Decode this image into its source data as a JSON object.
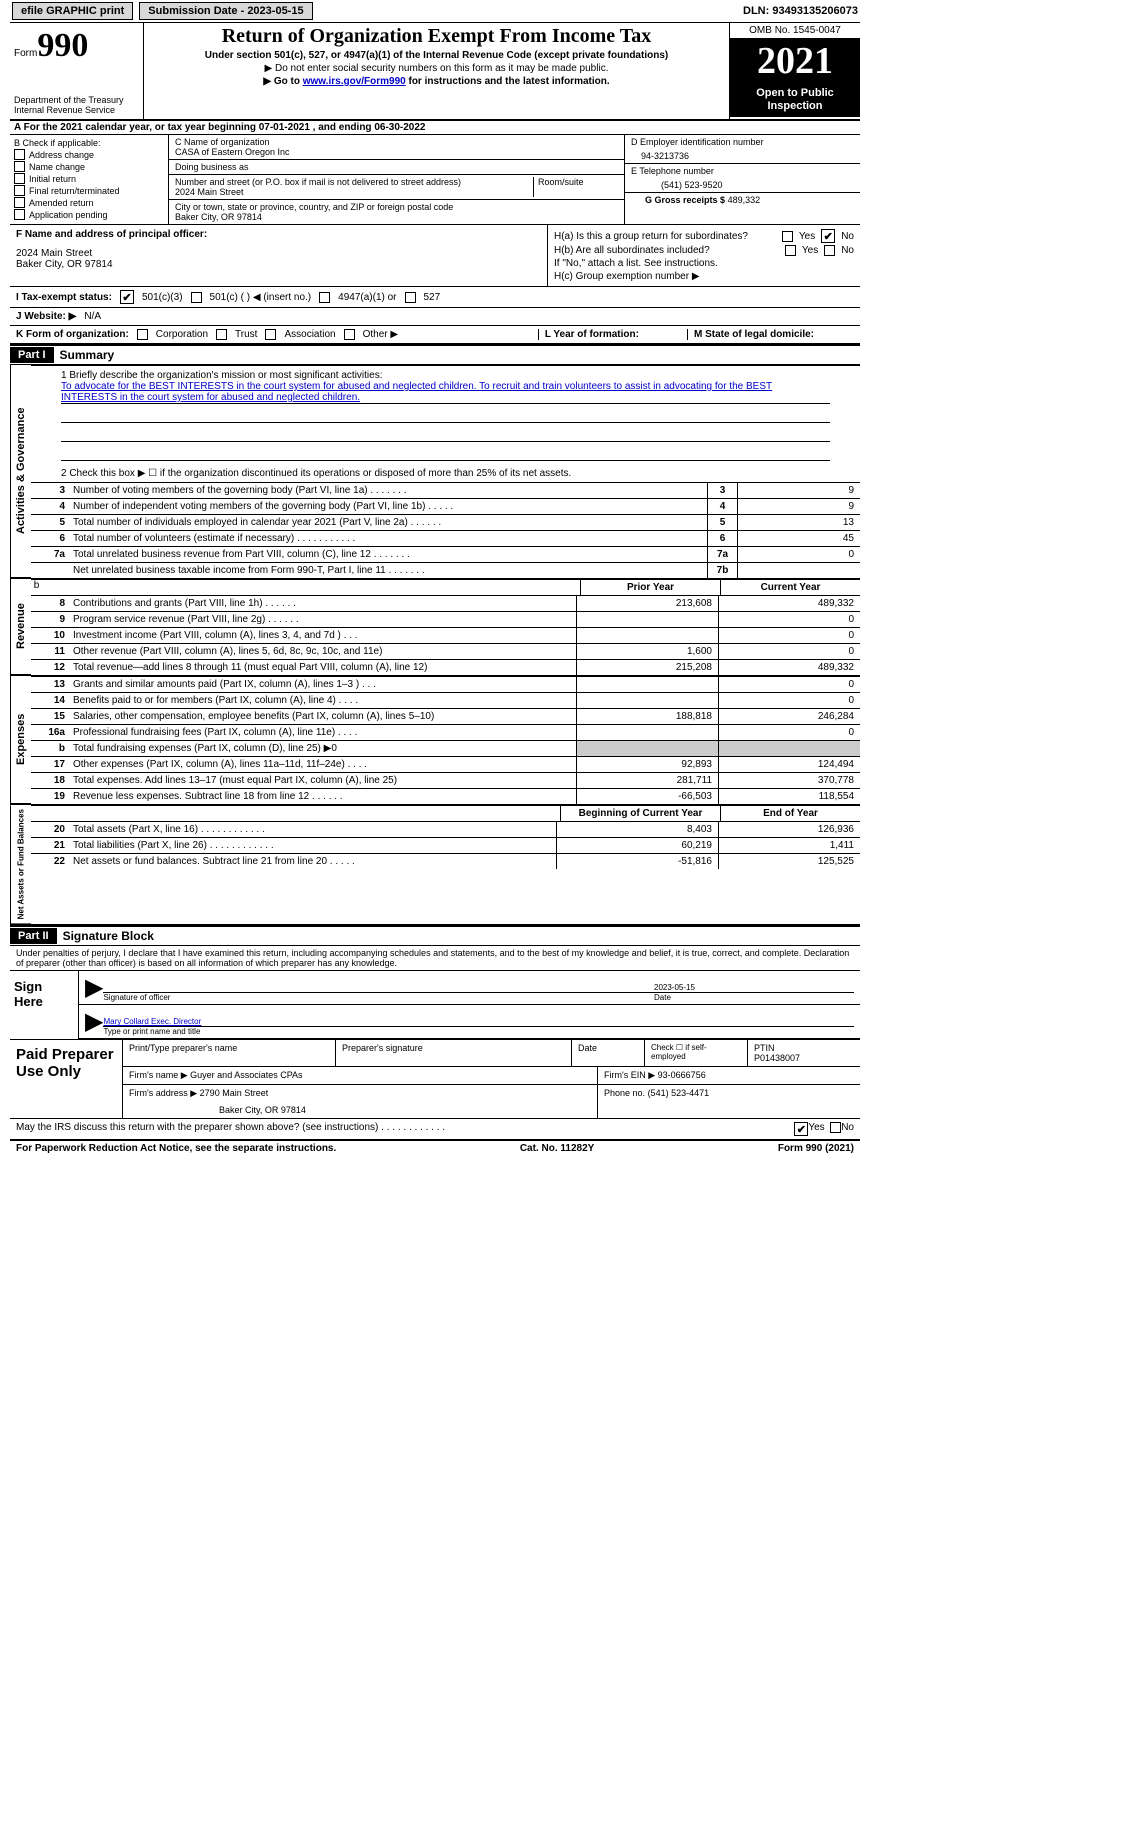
{
  "topbar": {
    "efile": "efile GRAPHIC print",
    "submission_label": "Submission Date - 2023-05-15",
    "dln": "DLN: 93493135206073"
  },
  "header": {
    "form_word": "Form",
    "form_num": "990",
    "dept1": "Department of the Treasury",
    "dept2": "Internal Revenue Service",
    "title": "Return of Organization Exempt From Income Tax",
    "sub1": "Under section 501(c), 527, or 4947(a)(1) of the Internal Revenue Code (except private foundations)",
    "sub2": "▶ Do not enter social security numbers on this form as it may be made public.",
    "sub3_pre": "▶ Go to ",
    "sub3_link": "www.irs.gov/Form990",
    "sub3_post": " for instructions and the latest information.",
    "omb": "OMB No. 1545-0047",
    "year": "2021",
    "open": "Open to Public Inspection"
  },
  "row_a": "A For the 2021 calendar year, or tax year beginning 07-01-2021   , and ending 06-30-2022",
  "box_b": {
    "header": "B Check if applicable:",
    "opts": [
      "Address change",
      "Name change",
      "Initial return",
      "Final return/terminated",
      "Amended return",
      "Application pending"
    ]
  },
  "box_c": {
    "name_lab": "C Name of organization",
    "name_val": "CASA of Eastern Oregon Inc",
    "dba": "Doing business as",
    "street_lab": "Number and street (or P.O. box if mail is not delivered to street address)",
    "street_val": "2024 Main Street",
    "room": "Room/suite",
    "city_lab": "City or town, state or province, country, and ZIP or foreign postal code",
    "city_val": "Baker City, OR  97814"
  },
  "box_d": {
    "lab": "D Employer identification number",
    "val": "94-3213736"
  },
  "box_e": {
    "lab": "E Telephone number",
    "val": "(541) 523-9520"
  },
  "box_g": {
    "lab": "G Gross receipts $",
    "val": "489,332"
  },
  "box_f": {
    "lab": "F  Name and address of principal officer:",
    "line1": "2024 Main Street",
    "line2": "Baker City, OR  97814"
  },
  "box_h": {
    "ha": "H(a)  Is this a group return for subordinates?",
    "hb": "H(b)  Are all subordinates included?",
    "hb_note": "If \"No,\" attach a list. See instructions.",
    "hc": "H(c)  Group exemption number ▶",
    "yes": "Yes",
    "no": "No"
  },
  "tax_status": {
    "lab": "I  Tax-exempt status:",
    "o1": "501(c)(3)",
    "o2": "501(c) (  ) ◀ (insert no.)",
    "o3": "4947(a)(1) or",
    "o4": "527"
  },
  "row_j": {
    "lab": "J  Website: ▶",
    "val": "N/A"
  },
  "row_k": {
    "lab": "K Form of organization:",
    "opts": [
      "Corporation",
      "Trust",
      "Association",
      "Other ▶"
    ],
    "l_lab": "L Year of formation:",
    "m_lab": "M State of legal domicile:"
  },
  "part1": {
    "bar": "Part I",
    "title": "Summary"
  },
  "mission": {
    "lab": "1   Briefly describe the organization's mission or most significant activities:",
    "text": "To advocate for the BEST INTERESTS in the court system for abused and neglected children. To recruit and train volunteers to assist in advocating for the BEST INTERESTS in the court system for abused and neglected children."
  },
  "line2": "2   Check this box ▶ ☐  if the organization discontinued its operations or disposed of more than 25% of its net assets.",
  "vert_labels": {
    "ag": "Activities & Governance",
    "rev": "Revenue",
    "exp": "Expenses",
    "na": "Net Assets or Fund Balances"
  },
  "ag_lines": [
    {
      "n": "3",
      "t": "Number of voting members of the governing body (Part VI, line 1a)  .   .   .   .   .   .   .",
      "b": "3",
      "v": "9"
    },
    {
      "n": "4",
      "t": "Number of independent voting members of the governing body (Part VI, line 1b)  .   .   .   .   .",
      "b": "4",
      "v": "9"
    },
    {
      "n": "5",
      "t": "Total number of individuals employed in calendar year 2021 (Part V, line 2a)  .   .   .   .   .   .",
      "b": "5",
      "v": "13"
    },
    {
      "n": "6",
      "t": "Total number of volunteers (estimate if necessary)   .   .   .   .   .   .   .   .   .   .   .",
      "b": "6",
      "v": "45"
    },
    {
      "n": "7a",
      "t": "Total unrelated business revenue from Part VIII, column (C), line 12   .   .   .   .   .   .   .",
      "b": "7a",
      "v": "0"
    },
    {
      "n": "",
      "t": "Net unrelated business taxable income from Form 990-T, Part I, line 11  .   .   .   .   .   .   .",
      "b": "7b",
      "v": ""
    }
  ],
  "col_headers": {
    "prior": "Prior Year",
    "current": "Current Year",
    "boy": "Beginning of Current Year",
    "eoy": "End of Year"
  },
  "rev_lines": [
    {
      "n": "8",
      "t": "Contributions and grants (Part VIII, line 1h)   .   .   .   .   .   .",
      "p": "213,608",
      "c": "489,332"
    },
    {
      "n": "9",
      "t": "Program service revenue (Part VIII, line 2g)   .   .   .   .   .   .",
      "p": "",
      "c": "0"
    },
    {
      "n": "10",
      "t": "Investment income (Part VIII, column (A), lines 3, 4, and 7d )   .   .   .",
      "p": "",
      "c": "0"
    },
    {
      "n": "11",
      "t": "Other revenue (Part VIII, column (A), lines 5, 6d, 8c, 9c, 10c, and 11e)",
      "p": "1,600",
      "c": "0"
    },
    {
      "n": "12",
      "t": "Total revenue—add lines 8 through 11 (must equal Part VIII, column (A), line 12)",
      "p": "215,208",
      "c": "489,332"
    }
  ],
  "exp_lines": [
    {
      "n": "13",
      "t": "Grants and similar amounts paid (Part IX, column (A), lines 1–3 )   .   .   .",
      "p": "",
      "c": "0"
    },
    {
      "n": "14",
      "t": "Benefits paid to or for members (Part IX, column (A), line 4)   .   .   .   .",
      "p": "",
      "c": "0"
    },
    {
      "n": "15",
      "t": "Salaries, other compensation, employee benefits (Part IX, column (A), lines 5–10)",
      "p": "188,818",
      "c": "246,284"
    },
    {
      "n": "16a",
      "t": "Professional fundraising fees (Part IX, column (A), line 11e)   .   .   .   .",
      "p": "",
      "c": "0"
    },
    {
      "n": "b",
      "t": "Total fundraising expenses (Part IX, column (D), line 25) ▶0",
      "p": "shade",
      "c": "shade"
    },
    {
      "n": "17",
      "t": "Other expenses (Part IX, column (A), lines 11a–11d, 11f–24e)   .   .   .   .",
      "p": "92,893",
      "c": "124,494"
    },
    {
      "n": "18",
      "t": "Total expenses. Add lines 13–17 (must equal Part IX, column (A), line 25)",
      "p": "281,711",
      "c": "370,778"
    },
    {
      "n": "19",
      "t": "Revenue less expenses. Subtract line 18 from line 12   .   .   .   .   .   .",
      "p": "-66,503",
      "c": "118,554"
    }
  ],
  "na_lines": [
    {
      "n": "20",
      "t": "Total assets (Part X, line 16)  .   .   .   .   .   .   .   .   .   .   .   .",
      "p": "8,403",
      "c": "126,936"
    },
    {
      "n": "21",
      "t": "Total liabilities (Part X, line 26)  .   .   .   .   .   .   .   .   .   .   .   .",
      "p": "60,219",
      "c": "1,411"
    },
    {
      "n": "22",
      "t": "Net assets or fund balances. Subtract line 21 from line 20   .   .   .   .   .",
      "p": "-51,816",
      "c": "125,525"
    }
  ],
  "part2": {
    "bar": "Part II",
    "title": "Signature Block"
  },
  "declaration": "Under penalties of perjury, I declare that I have examined this return, including accompanying schedules and statements, and to the best of my knowledge and belief, it is true, correct, and complete. Declaration of preparer (other than officer) is based on all information of which preparer has any knowledge.",
  "sign": {
    "here": "Sign Here",
    "sig_of": "Signature of officer",
    "date": "Date",
    "date_val": "2023-05-15",
    "name": "Mary Collard  Exec. Director",
    "name_lab": "Type or print name and title"
  },
  "prep": {
    "title": "Paid Preparer Use Only",
    "h1": "Print/Type preparer's name",
    "h2": "Preparer's signature",
    "h3": "Date",
    "check_lab": "Check ☐ if self-employed",
    "ptin_lab": "PTIN",
    "ptin": "P01438007",
    "firm_name_lab": "Firm's name    ▶",
    "firm_name": "Guyer and Associates CPAs",
    "firm_ein_lab": "Firm's EIN ▶",
    "firm_ein": "93-0666756",
    "firm_addr_lab": "Firm's address ▶",
    "firm_addr1": "2790 Main Street",
    "firm_addr2": "Baker City, OR  97814",
    "phone_lab": "Phone no.",
    "phone": "(541) 523-4471"
  },
  "footer": {
    "q": "May the IRS discuss this return with the preparer shown above? (see instructions)   .   .   .   .   .   .   .   .   .   .   .   .",
    "yes": "Yes",
    "no": "No",
    "pra": "For Paperwork Reduction Act Notice, see the separate instructions.",
    "cat": "Cat. No. 11282Y",
    "form": "Form 990 (2021)"
  }
}
